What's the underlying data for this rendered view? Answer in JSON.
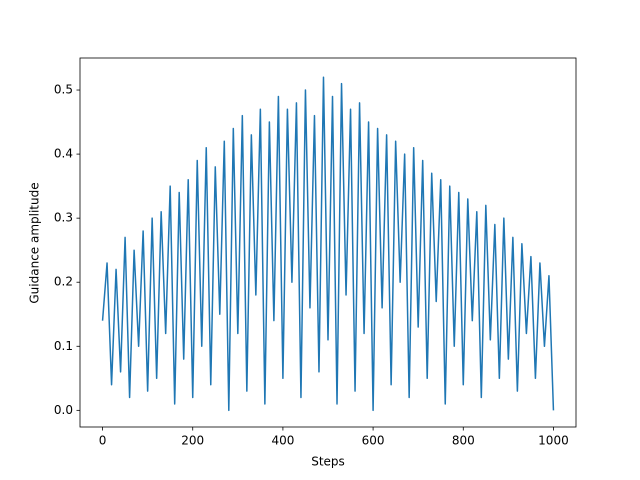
{
  "chart_data": {
    "type": "line",
    "xlabel": "Steps",
    "ylabel": "Guidance amplitude",
    "x": [
      0,
      10,
      20,
      30,
      40,
      50,
      60,
      70,
      80,
      90,
      100,
      110,
      120,
      130,
      140,
      150,
      160,
      170,
      180,
      190,
      200,
      210,
      220,
      230,
      240,
      250,
      260,
      270,
      280,
      290,
      300,
      310,
      320,
      330,
      340,
      350,
      360,
      370,
      380,
      390,
      400,
      410,
      420,
      430,
      440,
      450,
      460,
      470,
      480,
      490,
      500,
      510,
      520,
      530,
      540,
      550,
      560,
      570,
      580,
      590,
      600,
      610,
      620,
      630,
      640,
      650,
      660,
      670,
      680,
      690,
      700,
      710,
      720,
      730,
      740,
      750,
      760,
      770,
      780,
      790,
      800,
      810,
      820,
      830,
      840,
      850,
      860,
      870,
      880,
      890,
      900,
      910,
      920,
      930,
      940,
      950,
      960,
      970,
      980,
      990,
      1000
    ],
    "series": [
      {
        "color": "#1f77b4",
        "values": [
          0.14,
          0.23,
          0.04,
          0.22,
          0.06,
          0.27,
          0.02,
          0.25,
          0.1,
          0.28,
          0.03,
          0.3,
          0.05,
          0.31,
          0.12,
          0.35,
          0.01,
          0.34,
          0.08,
          0.36,
          0.02,
          0.39,
          0.1,
          0.41,
          0.04,
          0.38,
          0.15,
          0.42,
          0.0,
          0.44,
          0.12,
          0.46,
          0.03,
          0.43,
          0.18,
          0.47,
          0.01,
          0.45,
          0.14,
          0.49,
          0.05,
          0.47,
          0.2,
          0.48,
          0.02,
          0.5,
          0.16,
          0.46,
          0.06,
          0.52,
          0.11,
          0.49,
          0.01,
          0.51,
          0.18,
          0.47,
          0.03,
          0.48,
          0.12,
          0.45,
          0.0,
          0.44,
          0.16,
          0.43,
          0.04,
          0.42,
          0.2,
          0.4,
          0.02,
          0.41,
          0.13,
          0.39,
          0.05,
          0.37,
          0.17,
          0.36,
          0.01,
          0.35,
          0.1,
          0.34,
          0.04,
          0.33,
          0.14,
          0.31,
          0.02,
          0.32,
          0.11,
          0.29,
          0.05,
          0.3,
          0.08,
          0.27,
          0.03,
          0.26,
          0.12,
          0.24,
          0.05,
          0.23,
          0.1,
          0.21,
          0.0
        ]
      }
    ],
    "xlim": [
      -50,
      1050
    ],
    "ylim": [
      -0.026,
      0.55
    ],
    "xticks": [
      0,
      200,
      400,
      600,
      800,
      1000
    ],
    "yticks": [
      {
        "value": 0,
        "label": "0.0"
      },
      0.1,
      0.2,
      0.3,
      0.4,
      0.5
    ]
  }
}
